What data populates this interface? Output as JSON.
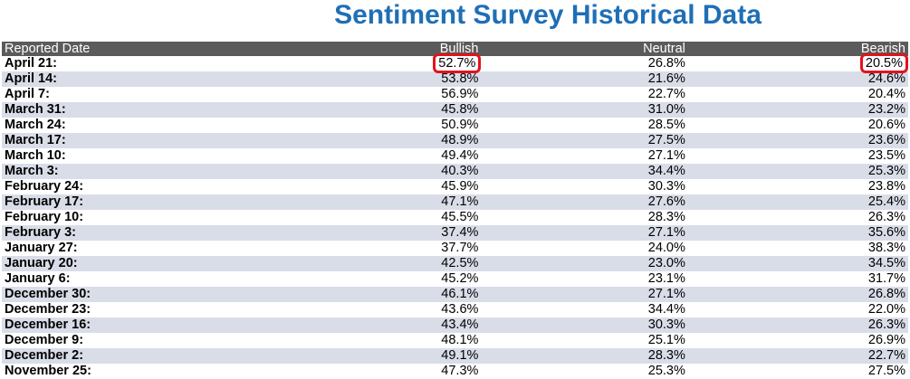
{
  "title": "Sentiment Survey Historical Data",
  "columns": [
    "Reported Date",
    "Bullish",
    "Neutral",
    "Bearish"
  ],
  "highlight_color": "#e0141e",
  "title_color": "#1f6fb5",
  "rows": [
    {
      "date": "April 21:",
      "bullish": "52.7%",
      "neutral": "26.8%",
      "bearish": "20.5%"
    },
    {
      "date": "April 14:",
      "bullish": "53.8%",
      "neutral": "21.6%",
      "bearish": "24.6%"
    },
    {
      "date": "April 7:",
      "bullish": "56.9%",
      "neutral": "22.7%",
      "bearish": "20.4%"
    },
    {
      "date": "March 31:",
      "bullish": "45.8%",
      "neutral": "31.0%",
      "bearish": "23.2%"
    },
    {
      "date": "March 24:",
      "bullish": "50.9%",
      "neutral": "28.5%",
      "bearish": "20.6%"
    },
    {
      "date": "March 17:",
      "bullish": "48.9%",
      "neutral": "27.5%",
      "bearish": "23.6%"
    },
    {
      "date": "March 10:",
      "bullish": "49.4%",
      "neutral": "27.1%",
      "bearish": "23.5%"
    },
    {
      "date": "March 3:",
      "bullish": "40.3%",
      "neutral": "34.4%",
      "bearish": "25.3%"
    },
    {
      "date": "February 24:",
      "bullish": "45.9%",
      "neutral": "30.3%",
      "bearish": "23.8%"
    },
    {
      "date": "February 17:",
      "bullish": "47.1%",
      "neutral": "27.6%",
      "bearish": "25.4%"
    },
    {
      "date": "February 10:",
      "bullish": "45.5%",
      "neutral": "28.3%",
      "bearish": "26.3%"
    },
    {
      "date": "February 3:",
      "bullish": "37.4%",
      "neutral": "27.1%",
      "bearish": "35.6%"
    },
    {
      "date": "January 27:",
      "bullish": "37.7%",
      "neutral": "24.0%",
      "bearish": "38.3%"
    },
    {
      "date": "January 20:",
      "bullish": "42.5%",
      "neutral": "23.0%",
      "bearish": "34.5%"
    },
    {
      "date": "January 6:",
      "bullish": "45.2%",
      "neutral": "23.1%",
      "bearish": "31.7%"
    },
    {
      "date": "December 30:",
      "bullish": "46.1%",
      "neutral": "27.1%",
      "bearish": "26.8%"
    },
    {
      "date": "December 23:",
      "bullish": "43.6%",
      "neutral": "34.4%",
      "bearish": "22.0%"
    },
    {
      "date": "December 16:",
      "bullish": "43.4%",
      "neutral": "30.3%",
      "bearish": "26.3%"
    },
    {
      "date": "December 9:",
      "bullish": "48.1%",
      "neutral": "25.1%",
      "bearish": "26.9%"
    },
    {
      "date": "December 2:",
      "bullish": "49.1%",
      "neutral": "28.3%",
      "bearish": "22.7%"
    },
    {
      "date": "November 25:",
      "bullish": "47.3%",
      "neutral": "25.3%",
      "bearish": "27.5%"
    }
  ]
}
